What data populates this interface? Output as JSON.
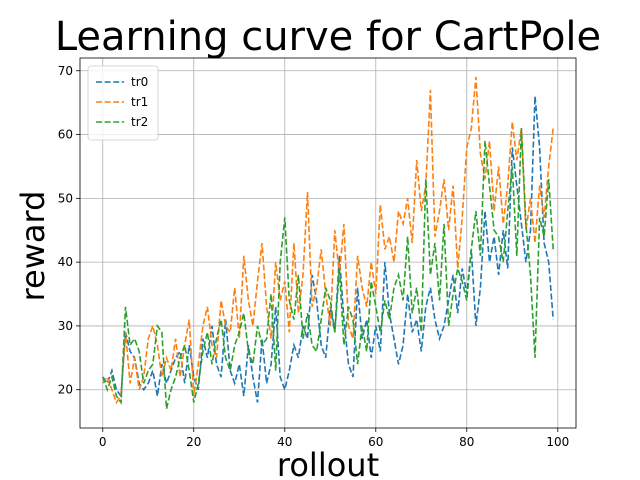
{
  "chart_data": {
    "type": "line",
    "title": "Learning curve for CartPole",
    "xlabel": "rollout",
    "ylabel": "reward",
    "xlim": [
      -5,
      104
    ],
    "ylim": [
      14,
      72
    ],
    "xticks": [
      0,
      20,
      40,
      60,
      80,
      100
    ],
    "yticks": [
      20,
      30,
      40,
      50,
      60,
      70
    ],
    "grid": true,
    "legend": "top-left",
    "series": [
      {
        "name": "tr0",
        "color": "#1f77b4",
        "style": "dashed",
        "x": [
          0,
          1,
          2,
          3,
          4,
          5,
          6,
          7,
          8,
          9,
          10,
          11,
          12,
          13,
          14,
          15,
          16,
          17,
          18,
          19,
          20,
          21,
          22,
          23,
          24,
          25,
          26,
          27,
          28,
          29,
          30,
          31,
          32,
          33,
          34,
          35,
          36,
          37,
          38,
          39,
          40,
          41,
          42,
          43,
          44,
          45,
          46,
          47,
          48,
          49,
          50,
          51,
          52,
          53,
          54,
          55,
          56,
          57,
          58,
          59,
          60,
          61,
          62,
          63,
          64,
          65,
          66,
          67,
          68,
          69,
          70,
          71,
          72,
          73,
          74,
          75,
          76,
          77,
          78,
          79,
          80,
          81,
          82,
          83,
          84,
          85,
          86,
          87,
          88,
          89,
          90,
          91,
          92,
          93,
          94,
          95,
          96,
          97,
          98,
          99
        ],
        "y": [
          22,
          21,
          23,
          20,
          19,
          29,
          26,
          25,
          21,
          20,
          21,
          23,
          19,
          24,
          21,
          23,
          25,
          26,
          21,
          27,
          22,
          20,
          28,
          25,
          30,
          24,
          22,
          31,
          23,
          21,
          24,
          19,
          27,
          22,
          18,
          28,
          21,
          24,
          33,
          22,
          20,
          23,
          27,
          25,
          30,
          28,
          38,
          34,
          27,
          25,
          33,
          29,
          41,
          31,
          24,
          22,
          36,
          28,
          31,
          25,
          30,
          26,
          40,
          32,
          28,
          24,
          27,
          35,
          29,
          31,
          26,
          33,
          36,
          31,
          28,
          30,
          34,
          38,
          32,
          39,
          35,
          42,
          30,
          36,
          48,
          40,
          44,
          38,
          45,
          39,
          58,
          52,
          46,
          40,
          45,
          66,
          58,
          43,
          40,
          31
        ]
      },
      {
        "name": "tr1",
        "color": "#ff7f0e",
        "style": "dashed",
        "x": [
          0,
          1,
          2,
          3,
          4,
          5,
          6,
          7,
          8,
          9,
          10,
          11,
          12,
          13,
          14,
          15,
          16,
          17,
          18,
          19,
          20,
          21,
          22,
          23,
          24,
          25,
          26,
          27,
          28,
          29,
          30,
          31,
          32,
          33,
          34,
          35,
          36,
          37,
          38,
          39,
          40,
          41,
          42,
          43,
          44,
          45,
          46,
          47,
          48,
          49,
          50,
          51,
          52,
          53,
          54,
          55,
          56,
          57,
          58,
          59,
          60,
          61,
          62,
          63,
          64,
          65,
          66,
          67,
          68,
          69,
          70,
          71,
          72,
          73,
          74,
          75,
          76,
          77,
          78,
          79,
          80,
          81,
          82,
          83,
          84,
          85,
          86,
          87,
          88,
          89,
          90,
          91,
          92,
          93,
          94,
          95,
          96,
          97,
          98,
          99
        ],
        "y": [
          21,
          22,
          20,
          18,
          19,
          29,
          21,
          25,
          20,
          22,
          28,
          30,
          27,
          22,
          25,
          23,
          28,
          22,
          27,
          31,
          19,
          24,
          30,
          33,
          27,
          25,
          34,
          30,
          29,
          36,
          28,
          41,
          34,
          30,
          37,
          43,
          33,
          28,
          40,
          34,
          37,
          29,
          43,
          32,
          38,
          51,
          33,
          36,
          42,
          35,
          30,
          45,
          38,
          46,
          30,
          28,
          41,
          36,
          33,
          40,
          35,
          49,
          42,
          44,
          40,
          48,
          46,
          50,
          43,
          56,
          48,
          52,
          67,
          44,
          48,
          53,
          45,
          52,
          39,
          47,
          58,
          61,
          69,
          57,
          53,
          59,
          48,
          55,
          46,
          52,
          62,
          56,
          61,
          45,
          50,
          43,
          52,
          47,
          55,
          61
        ]
      },
      {
        "name": "tr2",
        "color": "#2ca02c",
        "style": "dashed",
        "x": [
          0,
          1,
          2,
          3,
          4,
          5,
          6,
          7,
          8,
          9,
          10,
          11,
          12,
          13,
          14,
          15,
          16,
          17,
          18,
          19,
          20,
          21,
          22,
          23,
          24,
          25,
          26,
          27,
          28,
          29,
          30,
          31,
          32,
          33,
          34,
          35,
          36,
          37,
          38,
          39,
          40,
          41,
          42,
          43,
          44,
          45,
          46,
          47,
          48,
          49,
          50,
          51,
          52,
          53,
          54,
          55,
          56,
          57,
          58,
          59,
          60,
          61,
          62,
          63,
          64,
          65,
          66,
          67,
          68,
          69,
          70,
          71,
          72,
          73,
          74,
          75,
          76,
          77,
          78,
          79,
          80,
          81,
          82,
          83,
          84,
          85,
          86,
          87,
          88,
          89,
          90,
          91,
          92,
          93,
          94,
          95,
          96,
          97,
          98,
          99
        ],
        "y": [
          22,
          20,
          22,
          19,
          18,
          33,
          27,
          28,
          26,
          21,
          23,
          24,
          30,
          29,
          17,
          20,
          22,
          25,
          27,
          23,
          18,
          21,
          26,
          29,
          24,
          28,
          31,
          25,
          23,
          27,
          29,
          32,
          26,
          24,
          30,
          27,
          28,
          35,
          23,
          40,
          47,
          34,
          31,
          38,
          28,
          32,
          27,
          26,
          31,
          36,
          34,
          29,
          39,
          27,
          33,
          31,
          24,
          30,
          26,
          37,
          33,
          29,
          34,
          31,
          36,
          38,
          34,
          44,
          32,
          36,
          29,
          53,
          38,
          43,
          34,
          46,
          30,
          35,
          39,
          37,
          34,
          42,
          48,
          41,
          59,
          52,
          45,
          44,
          40,
          48,
          55,
          41,
          61,
          46,
          38,
          25,
          47,
          44,
          53,
          42
        ]
      }
    ]
  }
}
